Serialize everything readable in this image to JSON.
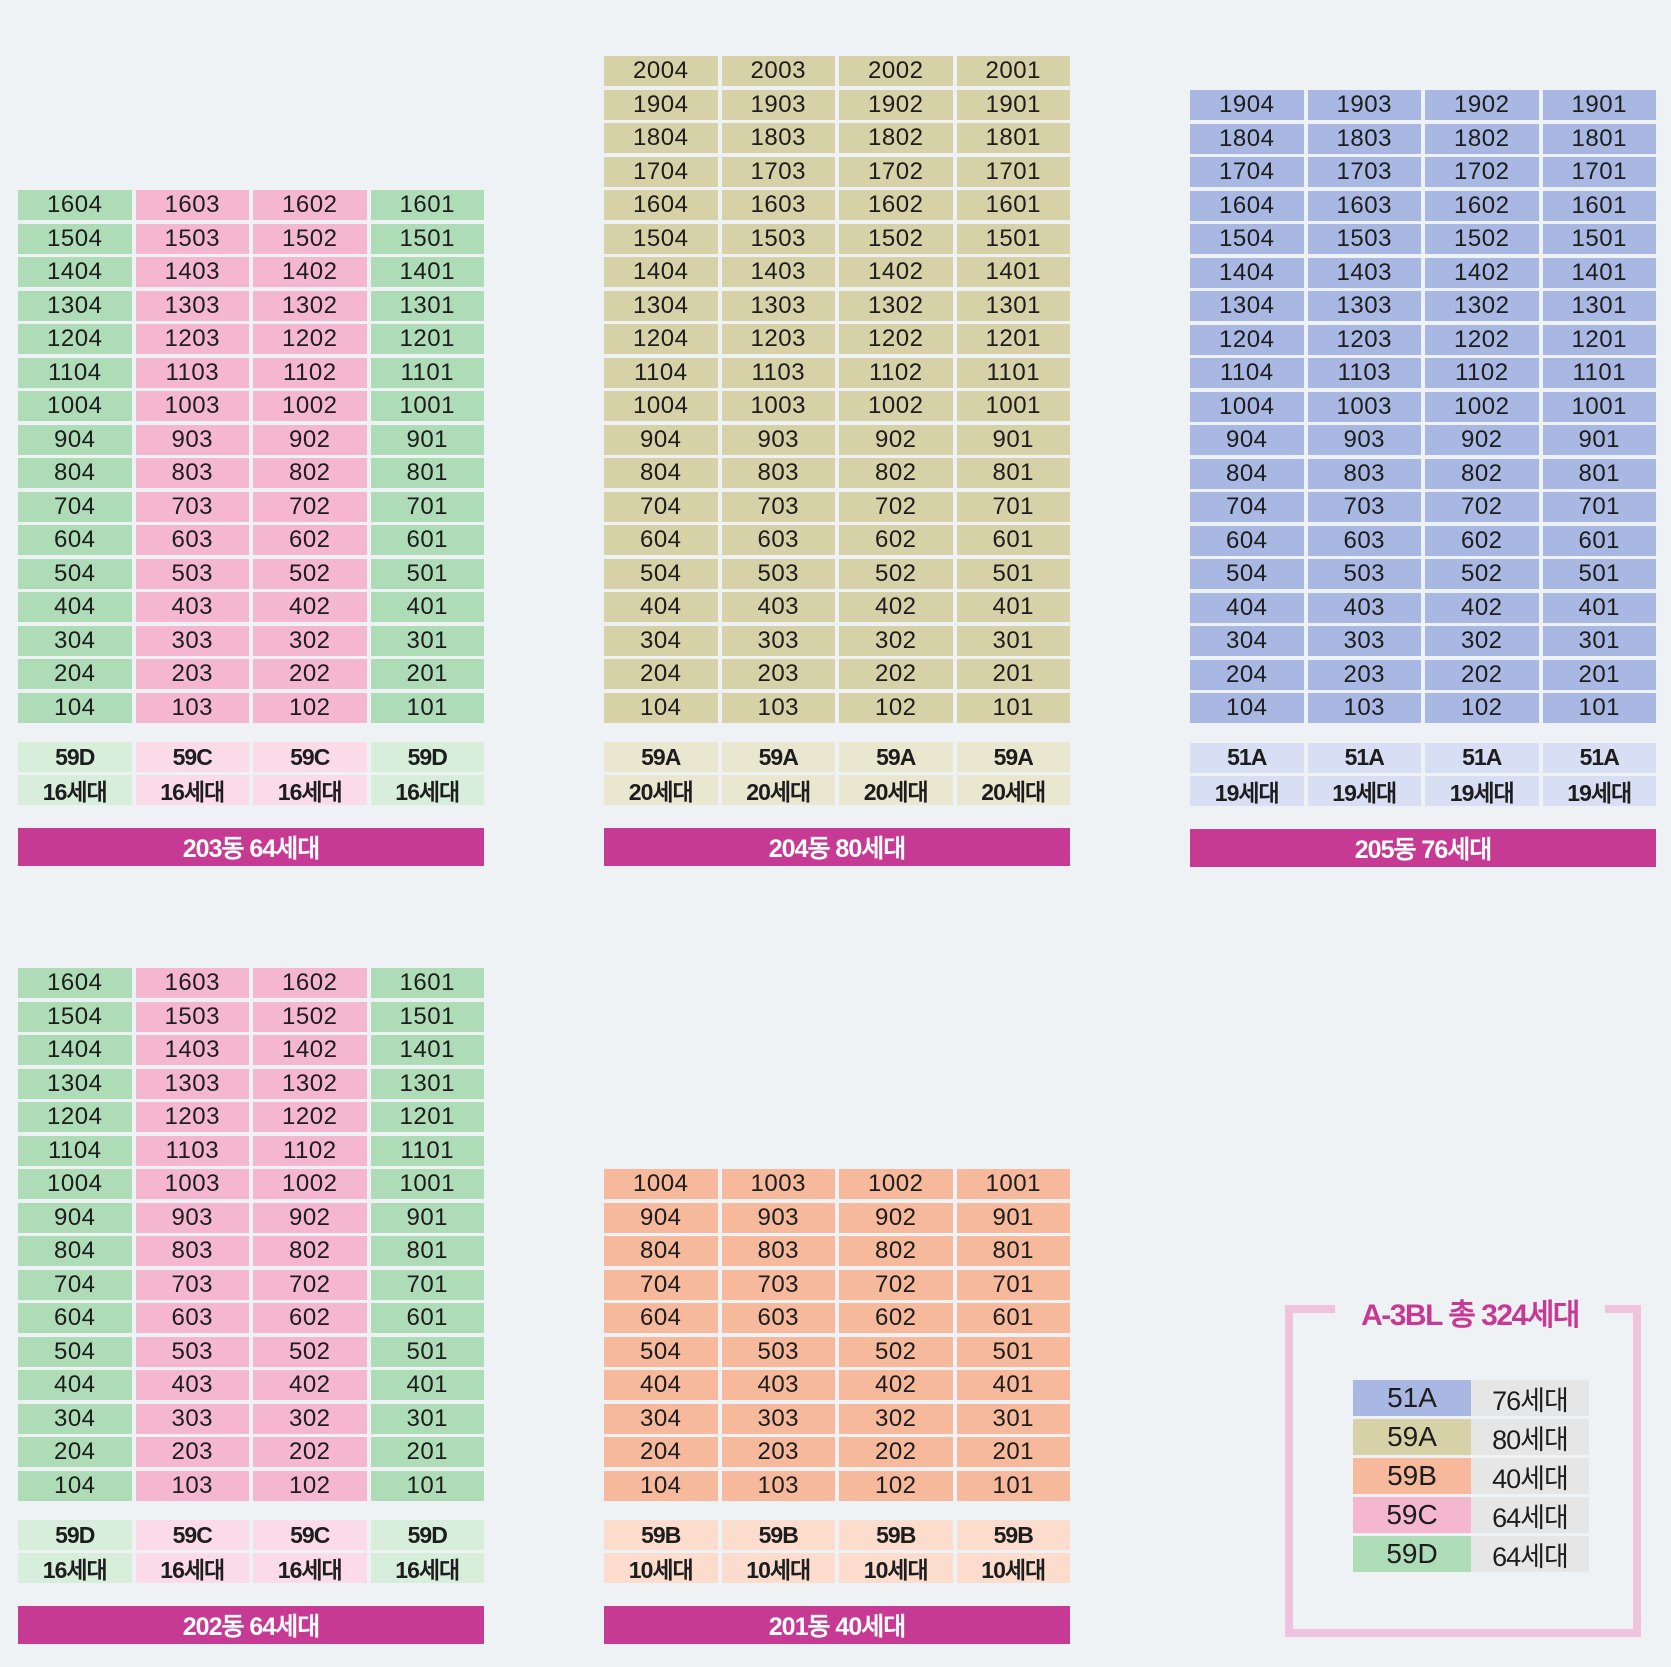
{
  "colors": {
    "51A": {
      "cell": "#a8b8e2",
      "light": "#d8def3"
    },
    "59A": {
      "cell": "#d6d1a6",
      "light": "#e9e7cf"
    },
    "59B": {
      "cell": "#f6b99c",
      "light": "#fbdccd"
    },
    "59C": {
      "cell": "#f5b7cf",
      "light": "#fadbe7"
    },
    "59D": {
      "cell": "#aedcb6",
      "light": "#d7eedb"
    }
  },
  "buildings": [
    {
      "id": "203",
      "label": "203동 64세대",
      "floors": 16,
      "column_types": [
        "59D",
        "59C",
        "59C",
        "59D"
      ],
      "column_suffix": [
        "04",
        "03",
        "02",
        "01"
      ],
      "type_labels": [
        "59D",
        "59C",
        "59C",
        "59D"
      ],
      "count_labels": [
        "16세대",
        "16세대",
        "16세대",
        "16세대"
      ]
    },
    {
      "id": "204",
      "label": "204동 80세대",
      "floors": 20,
      "column_types": [
        "59A",
        "59A",
        "59A",
        "59A"
      ],
      "column_suffix": [
        "04",
        "03",
        "02",
        "01"
      ],
      "type_labels": [
        "59A",
        "59A",
        "59A",
        "59A"
      ],
      "count_labels": [
        "20세대",
        "20세대",
        "20세대",
        "20세대"
      ]
    },
    {
      "id": "205",
      "label": "205동 76세대",
      "floors": 19,
      "column_types": [
        "51A",
        "51A",
        "51A",
        "51A"
      ],
      "column_suffix": [
        "04",
        "03",
        "02",
        "01"
      ],
      "type_labels": [
        "51A",
        "51A",
        "51A",
        "51A"
      ],
      "count_labels": [
        "19세대",
        "19세대",
        "19세대",
        "19세대"
      ]
    },
    {
      "id": "202",
      "label": "202동 64세대",
      "floors": 16,
      "column_types": [
        "59D",
        "59C",
        "59C",
        "59D"
      ],
      "column_suffix": [
        "04",
        "03",
        "02",
        "01"
      ],
      "type_labels": [
        "59D",
        "59C",
        "59C",
        "59D"
      ],
      "count_labels": [
        "16세대",
        "16세대",
        "16세대",
        "16세대"
      ]
    },
    {
      "id": "201",
      "label": "201동 40세대",
      "floors": 10,
      "column_types": [
        "59B",
        "59B",
        "59B",
        "59B"
      ],
      "column_suffix": [
        "04",
        "03",
        "02",
        "01"
      ],
      "type_labels": [
        "59B",
        "59B",
        "59B",
        "59B"
      ],
      "count_labels": [
        "10세대",
        "10세대",
        "10세대",
        "10세대"
      ]
    }
  ],
  "legend": {
    "title": "A-3BL 총 324세대",
    "rows": [
      {
        "type": "51A",
        "count": "76세대"
      },
      {
        "type": "59A",
        "count": "80세대"
      },
      {
        "type": "59B",
        "count": "40세대"
      },
      {
        "type": "59C",
        "count": "64세대"
      },
      {
        "type": "59D",
        "count": "64세대"
      }
    ]
  }
}
